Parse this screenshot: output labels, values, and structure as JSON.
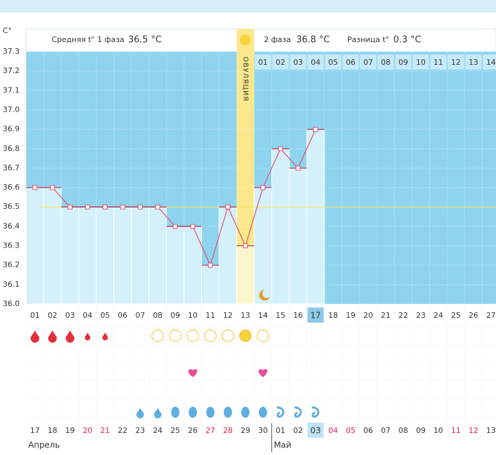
{
  "header": {
    "phase1_label": "Средняя t° 1 фаза",
    "phase1_avg": "36.5 °C",
    "phase2_label": "2 фаза",
    "phase2_avg": "36.8 °C",
    "diff_label": "Разница t°",
    "diff_value": "0.3 °C"
  },
  "chart_data": {
    "type": "line",
    "y_unit": "C°",
    "ovulation_label": "ОВУЛЯЦИЯ",
    "ovulation_index": 12,
    "current_index": 16,
    "categories": [
      "01",
      "02",
      "03",
      "04",
      "05",
      "06",
      "07",
      "08",
      "09",
      "10",
      "11",
      "12",
      "13",
      "14",
      "15",
      "16",
      "17",
      "18",
      "19",
      "20",
      "21",
      "22",
      "23",
      "24",
      "25",
      "26",
      "27"
    ],
    "values": [
      36.6,
      36.6,
      36.5,
      36.5,
      36.5,
      36.5,
      36.5,
      36.5,
      36.4,
      36.4,
      36.2,
      36.5,
      36.3,
      36.6,
      36.8,
      36.7,
      36.9,
      null,
      null,
      null,
      null,
      null,
      null,
      null,
      null,
      null,
      null
    ],
    "color": "#e0506e",
    "ylim": [
      36.0,
      37.3
    ],
    "yticks": [
      {
        "value": 36.0,
        "label": "36.0"
      },
      36.1,
      36.2,
      36.3,
      36.4,
      36.5,
      36.6,
      36.7,
      36.8,
      36.9,
      {
        "value": 37.0,
        "label": "37.0"
      },
      37.1,
      37.2,
      37.3
    ],
    "coverline": 36.5,
    "grid": true,
    "phase2_start": 13,
    "phase2_days": [
      "01",
      "02",
      "03",
      "04",
      "05",
      "06",
      "07",
      "08",
      "09",
      "10",
      "11",
      "12",
      "13",
      "14"
    ]
  },
  "rows": {
    "bleeding": [
      "large",
      "large",
      "large",
      "small",
      "small",
      null,
      null,
      null,
      null,
      null,
      null,
      null,
      null,
      null,
      null,
      null,
      null,
      null,
      null,
      null,
      null,
      null,
      null,
      null,
      null,
      null,
      null
    ],
    "ovulation_test": [
      null,
      null,
      null,
      null,
      null,
      null,
      null,
      "negative",
      "negative",
      "negative",
      "negative",
      "negative",
      "positive",
      "negative",
      null,
      null,
      null,
      null,
      null,
      null,
      null,
      null,
      null,
      null,
      null,
      null,
      null
    ],
    "intercourse": [
      null,
      null,
      null,
      null,
      null,
      null,
      null,
      null,
      null,
      true,
      null,
      null,
      null,
      true,
      null,
      null,
      null,
      null,
      null,
      null,
      null,
      null,
      null,
      null,
      null,
      null,
      null
    ],
    "mucus": [
      null,
      null,
      null,
      null,
      null,
      null,
      "drop",
      "drop",
      "egg",
      "egg",
      "egg",
      "egg",
      "egg",
      "egg",
      "curl",
      "curl",
      "curl",
      null,
      null,
      null,
      null,
      null,
      null,
      null,
      null,
      null,
      null
    ],
    "dates": [
      {
        "label": "17"
      },
      {
        "label": "18"
      },
      {
        "label": "19"
      },
      {
        "label": "20",
        "red": true
      },
      {
        "label": "21",
        "red": true
      },
      {
        "label": "22"
      },
      {
        "label": "23"
      },
      {
        "label": "24"
      },
      {
        "label": "25"
      },
      {
        "label": "26"
      },
      {
        "label": "27",
        "red": true
      },
      {
        "label": "28",
        "red": true
      },
      {
        "label": "29"
      },
      {
        "label": "30"
      },
      {
        "label": "01"
      },
      {
        "label": "02"
      },
      {
        "label": "03",
        "today": true
      },
      {
        "label": "04",
        "red": true
      },
      {
        "label": "05",
        "red": true
      },
      {
        "label": "06"
      },
      {
        "label": "07"
      },
      {
        "label": "08"
      },
      {
        "label": "09"
      },
      {
        "label": "10"
      },
      {
        "label": "11",
        "red": true
      },
      {
        "label": "12",
        "red": true
      },
      {
        "label": "13"
      }
    ],
    "months": [
      {
        "label": "Апрель",
        "start": 0
      },
      {
        "label": "Май",
        "start": 14
      }
    ]
  }
}
